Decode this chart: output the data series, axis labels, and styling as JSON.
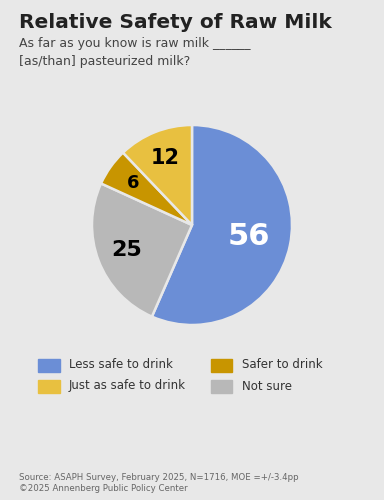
{
  "title": "Relative Safety of Raw Milk",
  "subtitle": "As far as you know is raw milk ______\n[as/than] pasteurized milk?",
  "slices": [
    56,
    25,
    6,
    12
  ],
  "slice_labels": [
    "56",
    "25",
    "6",
    "12"
  ],
  "colors": [
    "#6B8ED6",
    "#B8B8B8",
    "#C89500",
    "#E8C040"
  ],
  "text_colors": [
    "white",
    "black",
    "black",
    "black"
  ],
  "startangle": 90,
  "counterclock": false,
  "source": "Source: ASAPH Survey, February 2025, N=1716, MOE =+/-3.4pp\n©2025 Annenberg Public Policy Center",
  "background_color": "#E8E8E8",
  "legend_order": [
    {
      "label": "Less safe to drink",
      "color": "#6B8ED6"
    },
    {
      "label": "Safer to drink",
      "color": "#C89500"
    },
    {
      "label": "Just as safe to drink",
      "color": "#E8C040"
    },
    {
      "label": "Not sure",
      "color": "#B8B8B8"
    }
  ],
  "label_radii": [
    0.58,
    0.7,
    0.72,
    0.72
  ],
  "label_fontsizes": [
    22,
    16,
    13,
    15
  ]
}
